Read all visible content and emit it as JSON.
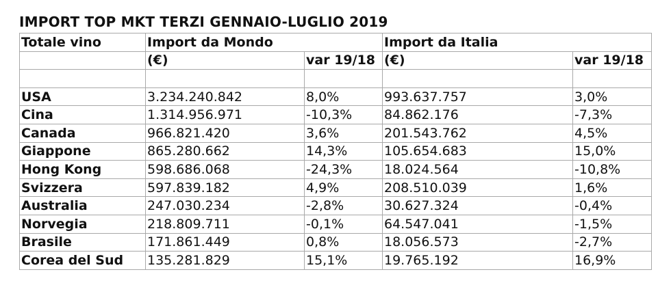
{
  "title": "IMPORT TOP MKT TERZI GENNAIO-LUGLIO 2019",
  "header": {
    "row1": {
      "col1": "Totale vino",
      "group_mondo": "Import da Mondo",
      "group_italia": "Import da Italia"
    },
    "row2": {
      "mondo_value": "(€)",
      "mondo_var": "var 19/18",
      "italia_value": "(€)",
      "italia_var": "var 19/18"
    }
  },
  "rows": [
    {
      "country": "USA",
      "mondo": "3.234.240.842",
      "mondo_var": "8,0%",
      "italia": "993.637.757",
      "italia_var": "3,0%"
    },
    {
      "country": "Cina",
      "mondo": "1.314.956.971",
      "mondo_var": "-10,3%",
      "italia": "84.862.176",
      "italia_var": "-7,3%"
    },
    {
      "country": "Canada",
      "mondo": "966.821.420",
      "mondo_var": "3,6%",
      "italia": "201.543.762",
      "italia_var": "4,5%"
    },
    {
      "country": "Giappone",
      "mondo": "865.280.662",
      "mondo_var": "14,3%",
      "italia": "105.654.683",
      "italia_var": "15,0%"
    },
    {
      "country": "Hong Kong",
      "mondo": "598.686.068",
      "mondo_var": "-24,3%",
      "italia": "18.024.564",
      "italia_var": "-10,8%"
    },
    {
      "country": "Svizzera",
      "mondo": "597.839.182",
      "mondo_var": "4,9%",
      "italia": "208.510.039",
      "italia_var": "1,6%"
    },
    {
      "country": "Australia",
      "mondo": "247.030.234",
      "mondo_var": "-2,8%",
      "italia": "30.627.324",
      "italia_var": "-0,4%"
    },
    {
      "country": "Norvegia",
      "mondo": "218.809.711",
      "mondo_var": "-0,1%",
      "italia": "64.547.041",
      "italia_var": "-1,5%"
    },
    {
      "country": "Brasile",
      "mondo": "171.861.449",
      "mondo_var": "0,8%",
      "italia": "18.056.573",
      "italia_var": "-2,7%"
    },
    {
      "country": "Corea del Sud",
      "mondo": "135.281.829",
      "mondo_var": "15,1%",
      "italia": "19.765.192",
      "italia_var": "16,9%"
    }
  ]
}
